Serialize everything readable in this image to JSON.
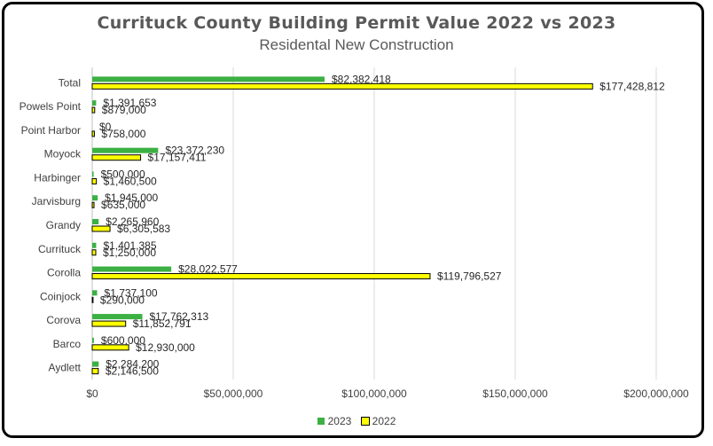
{
  "chart_data": {
    "type": "bar",
    "orientation": "horizontal",
    "title": "Currituck County Building Permit Value 2022 vs 2023",
    "subtitle": "Residental New Construction",
    "categories": [
      "Total",
      "Powels Point",
      "Point Harbor",
      "Moyock",
      "Harbinger",
      "Jarvisburg",
      "Grandy",
      "Currituck",
      "Corolla",
      "Coinjock",
      "Corova",
      "Barco",
      "Aydlett"
    ],
    "series": [
      {
        "name": "2023",
        "color": "#3cb043",
        "values": [
          82382418,
          1391653,
          0,
          23372230,
          500000,
          1945000,
          2265960,
          1401385,
          28022577,
          1737100,
          17762313,
          600000,
          2284200
        ],
        "labels": [
          "$82,382,418",
          "$1,391,653",
          "$0",
          "$23,372,230",
          "$500,000",
          "$1,945,000",
          "$2,265,960",
          "$1,401,385",
          "$28,022,577",
          "$1,737,100",
          "$17,762,313",
          "$600,000",
          "$2,284,200"
        ]
      },
      {
        "name": "2022",
        "color": "#ffff00",
        "values": [
          177428812,
          879000,
          758000,
          17157411,
          1460500,
          635000,
          6305583,
          1250000,
          119796527,
          290000,
          11852791,
          12930000,
          2146500
        ],
        "labels": [
          "$177,428,812",
          "$879,000",
          "$758,000",
          "$17,157,411",
          "$1,460,500",
          "$635,000",
          "$6,305,583",
          "$1,250,000",
          "$119,796,527",
          "$290,000",
          "$11,852,791",
          "$12,930,000",
          "$2,146,500"
        ]
      }
    ],
    "xlim": [
      0,
      200000000
    ],
    "xticks": [
      0,
      50000000,
      100000000,
      150000000,
      200000000
    ],
    "xtick_labels": [
      "$0",
      "$50,000,000",
      "$100,000,000",
      "$150,000,000",
      "$200,000,000"
    ],
    "grid": "vertical",
    "legend_position": "bottom"
  }
}
